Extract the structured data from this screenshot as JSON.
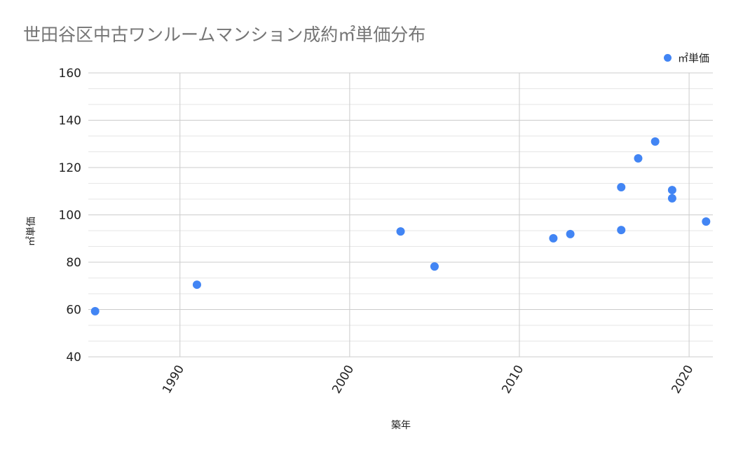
{
  "chart_data": {
    "type": "scatter",
    "title": "世田谷区中古ワンルームマンション成約㎡単価分布",
    "xlabel": "築年",
    "ylabel": "㎡単価",
    "xlim": [
      1984.6,
      2021.4
    ],
    "ylim": [
      40,
      160
    ],
    "x_ticks": [
      1990,
      2000,
      2010,
      2020
    ],
    "y_ticks": [
      40,
      60,
      80,
      100,
      120,
      140,
      160
    ],
    "grid": true,
    "minor_grid": true,
    "legend_position": "top-right",
    "series": [
      {
        "name": "㎡単価",
        "color": "#4285f4",
        "points": [
          {
            "x": 1985,
            "y": 59.3
          },
          {
            "x": 1991,
            "y": 70.5
          },
          {
            "x": 2003,
            "y": 93.0
          },
          {
            "x": 2005,
            "y": 78.2
          },
          {
            "x": 2012,
            "y": 90.1
          },
          {
            "x": 2013,
            "y": 91.9
          },
          {
            "x": 2016,
            "y": 111.7
          },
          {
            "x": 2016,
            "y": 93.6
          },
          {
            "x": 2017,
            "y": 123.9
          },
          {
            "x": 2018,
            "y": 131.0
          },
          {
            "x": 2019,
            "y": 110.5
          },
          {
            "x": 2019,
            "y": 107.0
          },
          {
            "x": 2021,
            "y": 97.2
          }
        ]
      }
    ]
  },
  "title": "世田谷区中古ワンルームマンション成約㎡単価分布",
  "legend": {
    "label": "㎡単価",
    "color": "#4285f4"
  },
  "axes": {
    "xlabel": "築年",
    "ylabel": "㎡単価"
  },
  "colors": {
    "point": "#4285f4",
    "major_grid": "#cccccc",
    "minor_grid": "#e6e6e6",
    "title": "#757575",
    "text": "#222222"
  }
}
